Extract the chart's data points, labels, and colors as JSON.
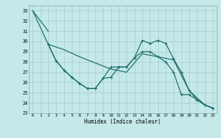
{
  "xlabel": "Humidex (Indice chaleur)",
  "bg_color": "#c5e8e8",
  "grid_color": "#9fcece",
  "line_color": "#1a6b6b",
  "xlim": [
    -0.5,
    23.5
  ],
  "ylim": [
    23,
    33.5
  ],
  "yticks": [
    23,
    24,
    25,
    26,
    27,
    28,
    29,
    30,
    31,
    32,
    33
  ],
  "xticks": [
    0,
    1,
    2,
    3,
    4,
    5,
    6,
    7,
    8,
    9,
    10,
    11,
    12,
    13,
    14,
    15,
    16,
    17,
    18,
    19,
    20,
    21,
    22,
    23
  ],
  "line1_x": [
    0,
    1,
    2
  ],
  "line1_y": [
    33.0,
    32.0,
    31.0
  ],
  "line2_x": [
    2,
    3,
    4,
    5,
    6,
    7,
    8,
    9,
    10,
    11,
    12,
    13,
    14,
    15,
    16,
    17,
    18,
    19,
    20,
    21,
    22,
    23
  ],
  "line2_y": [
    29.7,
    28.1,
    27.2,
    26.5,
    25.9,
    25.4,
    25.4,
    26.4,
    26.5,
    27.5,
    27.5,
    28.4,
    30.1,
    29.8,
    30.1,
    29.8,
    28.3,
    27.0,
    25.2,
    24.3,
    23.8,
    23.5
  ],
  "line3_x": [
    0,
    2,
    4,
    6,
    8,
    10,
    12,
    14,
    16,
    18,
    20,
    22,
    23
  ],
  "line3_y": [
    33.0,
    29.7,
    29.2,
    28.5,
    27.9,
    27.3,
    27.0,
    28.8,
    28.5,
    28.2,
    25.2,
    23.8,
    23.5
  ],
  "line4_x": [
    2,
    3,
    4,
    5,
    6,
    7,
    8,
    9,
    10,
    11,
    12,
    13,
    14,
    15,
    16,
    17,
    18,
    19,
    20,
    21,
    22,
    23
  ],
  "line4_y": [
    29.7,
    28.1,
    27.2,
    26.5,
    25.9,
    25.4,
    25.4,
    26.4,
    27.5,
    27.5,
    27.5,
    28.4,
    29.0,
    29.0,
    28.5,
    28.0,
    27.0,
    24.8,
    24.8,
    24.3,
    23.8,
    23.5
  ]
}
